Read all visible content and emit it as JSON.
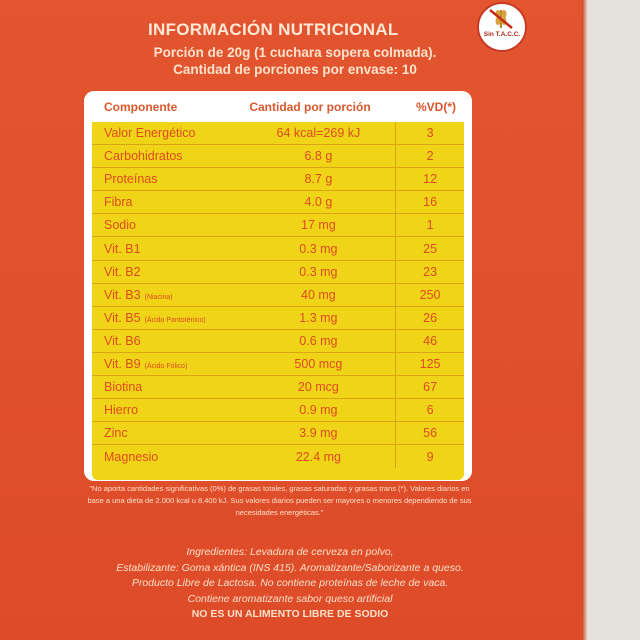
{
  "title": "INFORMACIÓN NUTRICIONAL",
  "serving": "Porción de 20g (1 cuchara sopera colmada).",
  "servings_count": "Cantidad de porciones por envase: 10",
  "badge": {
    "text": "Sin T.A.C.C.",
    "icon": "crossed-wheat-icon"
  },
  "table": {
    "headers": [
      "Componente",
      "Cantidad por porción",
      "%VD(*)"
    ],
    "rows": [
      {
        "name": "Valor Energético",
        "note": "",
        "amount": "64 kcal=269 kJ",
        "vd": "3"
      },
      {
        "name": "Carbohidratos",
        "note": "",
        "amount": "6.8 g",
        "vd": "2"
      },
      {
        "name": "Proteínas",
        "note": "",
        "amount": "8.7 g",
        "vd": "12"
      },
      {
        "name": "Fibra",
        "note": "",
        "amount": "4.0 g",
        "vd": "16"
      },
      {
        "name": "Sodio",
        "note": "",
        "amount": "17 mg",
        "vd": "1"
      },
      {
        "name": "Vit. B1",
        "note": "",
        "amount": "0.3 mg",
        "vd": "25"
      },
      {
        "name": "Vit. B2",
        "note": "",
        "amount": "0.3 mg",
        "vd": "23"
      },
      {
        "name": "Vit. B3",
        "note": "(Niacina)",
        "amount": "40 mg",
        "vd": "250"
      },
      {
        "name": "Vit. B5",
        "note": "(Ácido Pantoténico)",
        "amount": "1.3 mg",
        "vd": "26"
      },
      {
        "name": "Vit. B6",
        "note": "",
        "amount": "0.6 mg",
        "vd": "46"
      },
      {
        "name": "Vit. B9",
        "note": "(Ácido Fólico)",
        "amount": "500 mcg",
        "vd": "125"
      },
      {
        "name": "Biotina",
        "note": "",
        "amount": "20 mcg",
        "vd": "67"
      },
      {
        "name": "Hierro",
        "note": "",
        "amount": "0.9 mg",
        "vd": "6"
      },
      {
        "name": "Zinc",
        "note": "",
        "amount": "3.9 mg",
        "vd": "56"
      },
      {
        "name": "Magnesio",
        "note": "",
        "amount": "22.4 mg",
        "vd": "9"
      }
    ]
  },
  "footnote": "\"No aporta cantidades significativas (0%) de grasas totales, grasas saturadas y grasas trans (*). Valores diarios en base a una dieta de 2.000 kcal u 8.400 kJ. Sus valores diarios pueden ser mayores o menores dependiendo de sus necesidades energéticas.\"",
  "ingredients": [
    "Ingredientes: Levadura de cerveza en polvo,",
    "Estabilizante: Goma xántica (INS 415). Aromatizante/Saborizante a queso.",
    "Producto Libre de Lactosa. No contiene proteínas de leche de vaca.",
    "Contiene aromatizante sabor queso artificial",
    "NO ES UN ALIMENTO LIBRE DE SODIO"
  ],
  "colors": {
    "box": "#e04f2c",
    "table": "#f0d418",
    "text": "#dd4b1e"
  }
}
